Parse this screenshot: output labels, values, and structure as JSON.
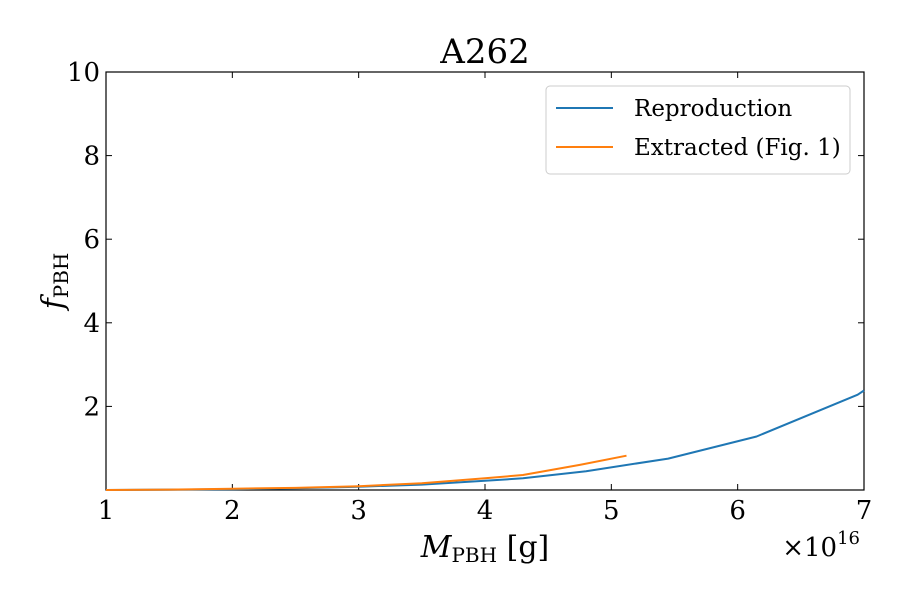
{
  "chart_data": {
    "type": "line",
    "title": "A262",
    "xlabel": {
      "main": "M",
      "sub": "PBH",
      "unit": " [g]"
    },
    "ylabel": {
      "main": "f",
      "sub": "PBH"
    },
    "x_multiplier": {
      "base": "×10",
      "exp": "16"
    },
    "xlim": [
      1,
      7
    ],
    "ylim": [
      0,
      10
    ],
    "x_ticks": [
      "1",
      "2",
      "3",
      "4",
      "5",
      "6",
      "7"
    ],
    "y_ticks": [
      "2",
      "4",
      "6",
      "8",
      "10"
    ],
    "grid": false,
    "legend_position": "top-right",
    "series": [
      {
        "name": "Reproduction",
        "color": "#1f77b4",
        "x": [
          1.0,
          1.5,
          2.0,
          2.5,
          3.0,
          3.5,
          4.0,
          4.3,
          4.8,
          5.45,
          6.15,
          6.95,
          7.0
        ],
        "y": [
          0.0,
          0.01,
          0.02,
          0.04,
          0.08,
          0.13,
          0.22,
          0.28,
          0.45,
          0.75,
          1.28,
          2.28,
          2.38
        ]
      },
      {
        "name": "Extracted (Fig. 1)",
        "color": "#ff7f0e",
        "x": [
          1.0,
          1.5,
          2.0,
          2.5,
          3.0,
          3.5,
          4.0,
          4.3,
          4.75,
          5.12
        ],
        "y": [
          0.0,
          0.01,
          0.03,
          0.05,
          0.09,
          0.16,
          0.28,
          0.36,
          0.6,
          0.82
        ]
      }
    ]
  }
}
